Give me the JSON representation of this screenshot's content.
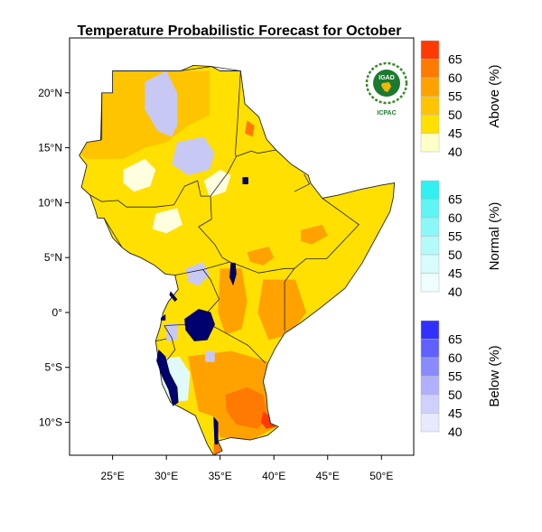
{
  "title": "Temperature Probabilistic Forecast for October",
  "logo": {
    "org": "IGAD",
    "caption": "ICPAC"
  },
  "axes": {
    "lat_ticks": [
      {
        "value": 20,
        "label": "20°N"
      },
      {
        "value": 15,
        "label": "15°N"
      },
      {
        "value": 10,
        "label": "10°N"
      },
      {
        "value": 5,
        "label": "5°N"
      },
      {
        "value": 0,
        "label": "0°"
      },
      {
        "value": -5,
        "label": "5°S"
      },
      {
        "value": -10,
        "label": "10°S"
      }
    ],
    "lon_ticks": [
      {
        "value": 25,
        "label": "25°E"
      },
      {
        "value": 30,
        "label": "30°E"
      },
      {
        "value": 35,
        "label": "35°E"
      },
      {
        "value": 40,
        "label": "40°E"
      },
      {
        "value": 45,
        "label": "45°E"
      },
      {
        "value": 50,
        "label": "50°E"
      }
    ],
    "lon_range": [
      21,
      53
    ],
    "lat_range": [
      -13,
      25
    ]
  },
  "legends": [
    {
      "title": "Above (%)",
      "labels": [
        "65",
        "60",
        "55",
        "50",
        "45",
        "40"
      ],
      "colors": [
        "#ff3a00",
        "#ff7a00",
        "#ffa200",
        "#ffc400",
        "#ffe000",
        "#ffffc8"
      ]
    },
    {
      "title": "Normal (%)",
      "labels": [
        "65",
        "60",
        "55",
        "50",
        "45",
        "40"
      ],
      "colors": [
        "#30f0f0",
        "#60f4f4",
        "#8cf7f7",
        "#b4fafa",
        "#d6fcfc",
        "#eefefe"
      ]
    },
    {
      "title": "Below (%)",
      "labels": [
        "65",
        "60",
        "55",
        "50",
        "45",
        "40"
      ],
      "colors": [
        "#3030ff",
        "#6060ff",
        "#8a8aff",
        "#b0b0ff",
        "#d0d0ff",
        "#e8e8ff"
      ]
    }
  ],
  "colors": {
    "above_45": "#ffe000",
    "above_50": "#ffc400",
    "above_55": "#ffa200",
    "above_60": "#ff7a00",
    "above_65": "#ff3a00",
    "below_50": "#c8c8f4",
    "normal_40": "#e0fafa",
    "lake": "#00006e",
    "pale": "#ffffe0"
  }
}
